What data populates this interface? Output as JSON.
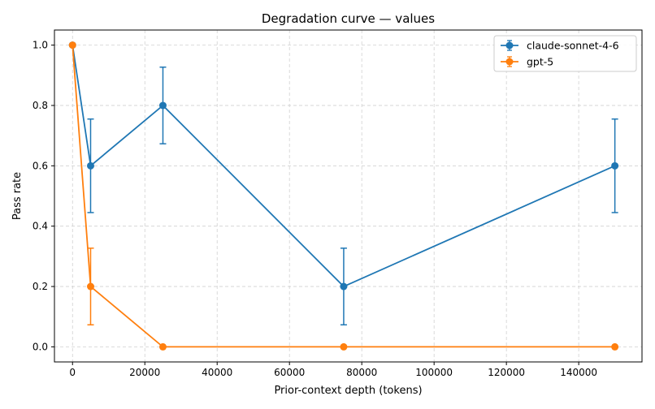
{
  "chart_data": {
    "type": "line",
    "title": "Degradation curve — values",
    "xlabel": "Prior-context depth (tokens)",
    "ylabel": "Pass rate",
    "xlim": [
      -5000,
      157500
    ],
    "ylim": [
      -0.05,
      1.05
    ],
    "xticks": [
      0,
      20000,
      40000,
      60000,
      80000,
      100000,
      120000,
      140000
    ],
    "yticks": [
      0.0,
      0.2,
      0.4,
      0.6,
      0.8,
      1.0
    ],
    "xtick_labels": [
      "0",
      "20000",
      "40000",
      "60000",
      "80000",
      "100000",
      "120000",
      "140000"
    ],
    "ytick_labels": [
      "0.0",
      "0.2",
      "0.4",
      "0.6",
      "0.8",
      "1.0"
    ],
    "grid": true,
    "legend_position": "top-right",
    "series": [
      {
        "name": "claude-sonnet-4-6",
        "color": "#1f77b4",
        "x": [
          0,
          5000,
          25000,
          75000,
          150000
        ],
        "y": [
          1.0,
          0.6,
          0.8,
          0.2,
          0.6
        ],
        "error": [
          0.0,
          0.155,
          0.127,
          0.127,
          0.155
        ]
      },
      {
        "name": "gpt-5",
        "color": "#ff7f0e",
        "x": [
          0,
          5000,
          25000,
          75000,
          150000
        ],
        "y": [
          1.0,
          0.2,
          0.0,
          0.0,
          0.0
        ],
        "error": [
          0.0,
          0.127,
          0.0,
          0.0,
          0.0
        ]
      }
    ]
  }
}
